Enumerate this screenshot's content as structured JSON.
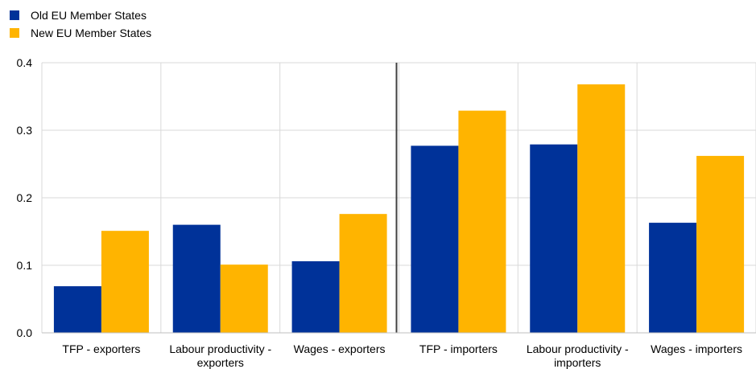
{
  "chart_data": {
    "type": "bar",
    "categories": [
      [
        "TFP - exporters"
      ],
      [
        "Labour productivity -",
        "exporters"
      ],
      [
        "Wages - exporters"
      ],
      [
        "TFP - importers"
      ],
      [
        "Labour productivity -",
        "importers"
      ],
      [
        "Wages - importers"
      ]
    ],
    "series": [
      {
        "name": "Old EU Member States",
        "color": "#003299",
        "values": [
          0.069,
          0.16,
          0.106,
          0.277,
          0.279,
          0.163
        ]
      },
      {
        "name": "New EU Member States",
        "color": "#FFB400",
        "values": [
          0.151,
          0.101,
          0.176,
          0.329,
          0.368,
          0.262
        ]
      }
    ],
    "ylim": [
      0,
      0.4
    ],
    "yticks": [
      "0.0",
      "0.1",
      "0.2",
      "0.3",
      "0.4"
    ],
    "grid": true,
    "legend_position": "top-left",
    "title": "",
    "xlabel": "",
    "ylabel": ""
  }
}
